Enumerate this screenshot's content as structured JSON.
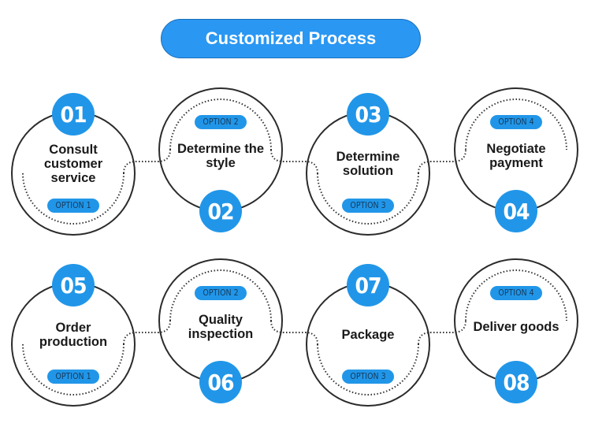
{
  "title": "Customized Process",
  "colors": {
    "accent": "#2196e8",
    "title_bg": "#2a97f3",
    "ring": "#2b2b2b"
  },
  "steps": [
    {
      "number": "01",
      "label": "Consult customer service",
      "option": "OPTION 1"
    },
    {
      "number": "02",
      "label": "Determine the style",
      "option": "OPTION 2"
    },
    {
      "number": "03",
      "label": "Determine solution",
      "option": "OPTION 3"
    },
    {
      "number": "04",
      "label": "Negotiate payment",
      "option": "OPTION 4"
    },
    {
      "number": "05",
      "label": "Order production",
      "option": "OPTION 1"
    },
    {
      "number": "06",
      "label": "Quality inspection",
      "option": "OPTION 2"
    },
    {
      "number": "07",
      "label": "Package",
      "option": "OPTION 3"
    },
    {
      "number": "08",
      "label": "Deliver goods",
      "option": "OPTION 4"
    }
  ]
}
